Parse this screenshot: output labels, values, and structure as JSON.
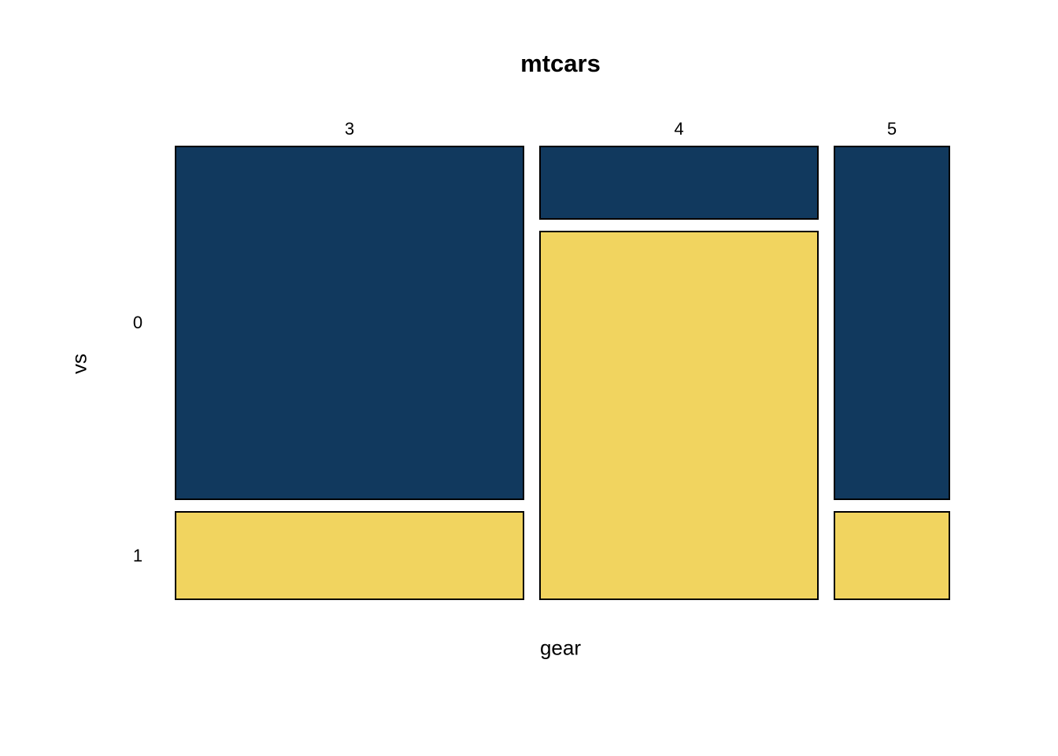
{
  "chart_data": {
    "type": "mosaic",
    "title": "mtcars",
    "xlabel": "gear",
    "ylabel": "vs",
    "x_categories": [
      "3",
      "4",
      "5"
    ],
    "y_categories": [
      "0",
      "1"
    ],
    "columns": [
      {
        "label": "3",
        "values": [
          12,
          3
        ]
      },
      {
        "label": "4",
        "values": [
          2,
          10
        ]
      },
      {
        "label": "5",
        "values": [
          4,
          1
        ]
      }
    ],
    "row_labels": [
      "0",
      "1"
    ],
    "row_colors": [
      "#11395E",
      "#F1D45F"
    ],
    "cell_border_color": "#000000",
    "background_color": "#FFFFFF",
    "legend": "none",
    "grid": "off"
  }
}
